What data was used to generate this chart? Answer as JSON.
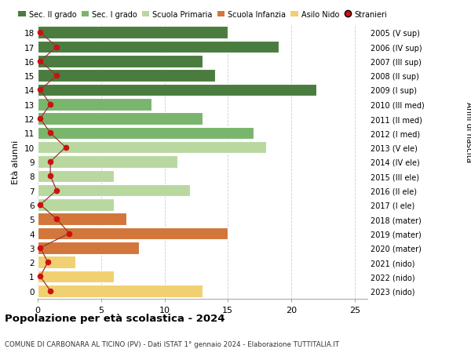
{
  "ages": [
    18,
    17,
    16,
    15,
    14,
    13,
    12,
    11,
    10,
    9,
    8,
    7,
    6,
    5,
    4,
    3,
    2,
    1,
    0
  ],
  "right_labels": [
    "2005 (V sup)",
    "2006 (IV sup)",
    "2007 (III sup)",
    "2008 (II sup)",
    "2009 (I sup)",
    "2010 (III med)",
    "2011 (II med)",
    "2012 (I med)",
    "2013 (V ele)",
    "2014 (IV ele)",
    "2015 (III ele)",
    "2016 (II ele)",
    "2017 (I ele)",
    "2018 (mater)",
    "2019 (mater)",
    "2020 (mater)",
    "2021 (nido)",
    "2022 (nido)",
    "2023 (nido)"
  ],
  "bar_values": [
    15,
    19,
    13,
    14,
    22,
    9,
    13,
    17,
    18,
    11,
    6,
    12,
    6,
    7,
    15,
    8,
    3,
    6,
    13
  ],
  "bar_colors": [
    "#4a7c3f",
    "#4a7c3f",
    "#4a7c3f",
    "#4a7c3f",
    "#4a7c3f",
    "#7ab56e",
    "#7ab56e",
    "#7ab56e",
    "#b8d8a0",
    "#b8d8a0",
    "#b8d8a0",
    "#b8d8a0",
    "#b8d8a0",
    "#d2763b",
    "#d2763b",
    "#d2763b",
    "#f0d070",
    "#f0d070",
    "#f0d070"
  ],
  "stranieri_x": [
    0.2,
    1.5,
    0.2,
    1.5,
    0.2,
    1.0,
    0.2,
    1.0,
    2.2,
    1.0,
    1.0,
    1.5,
    0.2,
    1.5,
    2.5,
    0.2,
    0.8,
    0.2,
    1.0
  ],
  "title": "Popolazione per età scolastica - 2024",
  "subtitle": "COMUNE DI CARBONARA AL TICINO (PV) - Dati ISTAT 1° gennaio 2024 - Elaborazione TUTTITALIA.IT",
  "ylabel_left": "Età alunni",
  "ylabel_right": "Anni di nascita",
  "xlim": [
    0,
    26
  ],
  "xticks": [
    0,
    5,
    10,
    15,
    20,
    25
  ],
  "legend_labels": [
    "Sec. II grado",
    "Sec. I grado",
    "Scuola Primaria",
    "Scuola Infanzia",
    "Asilo Nido",
    "Stranieri"
  ],
  "legend_colors": [
    "#4a7c3f",
    "#7ab56e",
    "#b8d8a0",
    "#d2763b",
    "#f0d070",
    "#cc1111"
  ],
  "bg_color": "#ffffff",
  "plot_bg_color": "#ffffff",
  "bar_height": 0.85,
  "grid_color": "#cccccc",
  "stranieri_line_color": "#993333",
  "stranieri_dot_color": "#cc1111",
  "ylim_min": -0.55,
  "ylim_max": 18.55
}
